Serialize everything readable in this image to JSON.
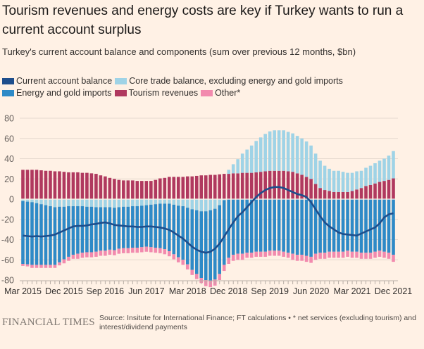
{
  "title": "Tourism revenues and energy costs are key if Turkey wants to run a current account surplus",
  "subtitle": "Turkey's current account balance and components (sum over previous 12 months, $bn)",
  "legend": [
    {
      "label": "Current account balance",
      "color": "#1e4e8c"
    },
    {
      "label": "Core trade balance, excluding energy and gold imports",
      "color": "#9fd3e6"
    },
    {
      "label": "Energy and gold imports",
      "color": "#2e8ac7"
    },
    {
      "label": "Tourism revenues",
      "color": "#b0395f"
    },
    {
      "label": "Other*",
      "color": "#f28aae"
    }
  ],
  "footer": {
    "logo": "FINANCIAL TIMES",
    "source": "Source: Insitute for International Finance; FT calculations • * net services (excluding tourism) and interest/dividend payments"
  },
  "chart_data": {
    "type": "bar",
    "stacked": true,
    "title": "Turkey's current account balance and components (sum over previous 12 months, $bn)",
    "xlabel": "",
    "ylabel": "$bn",
    "ylim": [
      -80,
      80
    ],
    "yticks": [
      80,
      60,
      40,
      20,
      0,
      -20,
      -40,
      -60,
      -80
    ],
    "grid": true,
    "legend_position": "top-left",
    "start": "Mar 2015",
    "frequency": "monthly",
    "xtick_labels": [
      "Mar 2015",
      "Dec 2015",
      "Sep 2016",
      "Jun 2017",
      "Mar 2018",
      "Dec 2018",
      "Sep 2019",
      "Jun 2020",
      "Mar 2021",
      "Dec 2021"
    ],
    "xtick_label_index": [
      0,
      9,
      18,
      27,
      36,
      45,
      54,
      63,
      72,
      81
    ],
    "series": [
      {
        "name": "Tourism revenues",
        "kind": "bar",
        "color": "#b0395f",
        "values": [
          29,
          29,
          29,
          29,
          28.5,
          28,
          28,
          27.5,
          27.5,
          27,
          26.5,
          26.5,
          26.5,
          26,
          26,
          25.5,
          25,
          23.5,
          22.5,
          21,
          20,
          19,
          18.5,
          18.5,
          18.5,
          18,
          18,
          18,
          18,
          19,
          20.5,
          21,
          22,
          22,
          22,
          22,
          22.5,
          22.5,
          23,
          23.5,
          23.5,
          24,
          24,
          24.5,
          25,
          25,
          25.5,
          25.5,
          26,
          26,
          26,
          26.5,
          27,
          27.5,
          28,
          28,
          28,
          28,
          27.5,
          27,
          25.5,
          24,
          22,
          20,
          15,
          11,
          9,
          8,
          7,
          7,
          7,
          7,
          8,
          9.5,
          11,
          13,
          14,
          15.5,
          17,
          18,
          19,
          20.5
        ]
      },
      {
        "name": "Core trade balance, excluding energy and gold imports",
        "kind": "bar",
        "color": "#9fd3e6",
        "values": [
          -2,
          -2.5,
          -3,
          -4,
          -5,
          -6,
          -7,
          -8,
          -7.5,
          -7.5,
          -7,
          -7,
          -7,
          -7,
          -7.5,
          -7.5,
          -8,
          -8,
          -8,
          -8,
          -8.5,
          -8,
          -7.5,
          -7.5,
          -7,
          -7,
          -6.5,
          -6,
          -5.5,
          -5,
          -4.5,
          -4.5,
          -4.5,
          -5.5,
          -6.5,
          -7,
          -8.5,
          -10,
          -11,
          -12,
          -12,
          -11,
          -9.5,
          -6,
          -1,
          4,
          9,
          14,
          19,
          23,
          27,
          31,
          34,
          37,
          39,
          40,
          40,
          40,
          39,
          38,
          37,
          36,
          35,
          33,
          30,
          27,
          24,
          22,
          21,
          21,
          20,
          19,
          18,
          18,
          17,
          18,
          19,
          20,
          21,
          22,
          24,
          27
        ]
      },
      {
        "name": "Energy and gold imports",
        "kind": "bar",
        "color": "#2e8ac7",
        "values": [
          -62,
          -62,
          -62,
          -61,
          -60,
          -59,
          -58,
          -57,
          -55,
          -52,
          -50,
          -48,
          -47,
          -46,
          -45,
          -45,
          -44,
          -43,
          -43,
          -42,
          -42,
          -41,
          -41,
          -41,
          -41,
          -41,
          -41,
          -41,
          -42,
          -43,
          -44,
          -45,
          -47,
          -49,
          -51,
          -53,
          -56,
          -60,
          -63,
          -66,
          -68,
          -70,
          -70,
          -68,
          -64,
          -58,
          -55,
          -54,
          -54,
          -53,
          -53,
          -52,
          -52,
          -52,
          -51,
          -51,
          -51,
          -52,
          -53,
          -54,
          -55,
          -55,
          -56,
          -57,
          -54,
          -53,
          -53,
          -52,
          -52,
          -52,
          -52,
          -51,
          -52,
          -52,
          -53,
          -53,
          -53,
          -52,
          -51,
          -52,
          -53,
          -55
        ]
      },
      {
        "name": "Other*",
        "kind": "bar",
        "color": "#f28aae",
        "values": [
          -2,
          -2,
          -3,
          -3,
          -3,
          -3,
          -3,
          -3,
          -3,
          -4,
          -4,
          -4,
          -5,
          -5,
          -5,
          -5,
          -5,
          -5,
          -5,
          -5,
          -5,
          -5,
          -5,
          -5,
          -5,
          -5,
          -5,
          -5,
          -5,
          -5,
          -5,
          -5,
          -5,
          -5,
          -5,
          -5,
          -5,
          -5,
          -5,
          -5,
          -6,
          -6,
          -6,
          -6,
          -6,
          -6,
          -6,
          -6,
          -6,
          -5,
          -5,
          -5,
          -5,
          -5,
          -5,
          -5,
          -5,
          -5,
          -5,
          -6,
          -6,
          -6,
          -6,
          -6,
          -6,
          -6,
          -6,
          -6,
          -6,
          -6,
          -6,
          -6,
          -6,
          -6,
          -6,
          -6,
          -6,
          -6,
          -6,
          -6,
          -6,
          -7
        ]
      },
      {
        "name": "Current account balance",
        "kind": "line",
        "color": "#1e4e8c",
        "values": [
          -36,
          -36.5,
          -37,
          -36.5,
          -37,
          -36.5,
          -36,
          -35,
          -33,
          -31,
          -29,
          -27,
          -26.5,
          -26.5,
          -26,
          -25,
          -24.5,
          -23.5,
          -23,
          -24,
          -25.5,
          -26,
          -26.5,
          -27,
          -27,
          -27.5,
          -27.5,
          -27,
          -27,
          -27.5,
          -28,
          -29,
          -30.5,
          -33,
          -36,
          -39,
          -43,
          -47,
          -50,
          -52,
          -53,
          -52,
          -49,
          -44,
          -37,
          -30,
          -23,
          -17,
          -13,
          -8,
          -3,
          2,
          6,
          9,
          11,
          12,
          12,
          11,
          9,
          7,
          5,
          4,
          2,
          -3,
          -10,
          -17,
          -23,
          -27,
          -30,
          -33,
          -34.5,
          -35,
          -35.5,
          -36,
          -34,
          -32,
          -30,
          -28,
          -24,
          -18,
          -15,
          -14
        ]
      }
    ]
  }
}
